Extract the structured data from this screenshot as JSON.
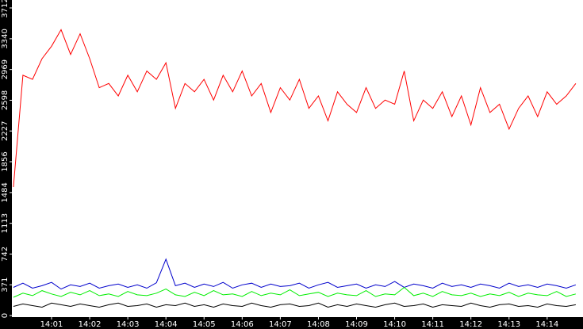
{
  "chart_data": {
    "type": "line",
    "x": [
      0,
      0.25,
      0.5,
      0.75,
      1,
      1.25,
      1.5,
      1.75,
      2,
      2.25,
      2.5,
      2.75,
      3,
      3.25,
      3.5,
      3.75,
      4,
      4.25,
      4.5,
      4.75,
      5,
      5.25,
      5.5,
      5.75,
      6,
      6.25,
      6.5,
      6.75,
      7,
      7.25,
      7.5,
      7.75,
      8,
      8.25,
      8.5,
      8.75,
      9,
      9.25,
      9.5,
      9.75,
      10,
      10.25,
      10.5,
      10.75,
      11,
      11.25,
      11.5,
      11.75,
      12,
      12.25,
      12.5,
      12.75,
      13,
      13.25,
      13.5,
      13.75,
      14,
      14.25,
      14.5,
      14.75
    ],
    "series": [
      {
        "color": "#ff0000",
        "values": [
          1550,
          2900,
          2850,
          3100,
          3250,
          3450,
          3150,
          3400,
          3100,
          2750,
          2800,
          2650,
          2900,
          2700,
          2950,
          2850,
          3050,
          2500,
          2800,
          2700,
          2850,
          2600,
          2900,
          2700,
          2950,
          2650,
          2800,
          2450,
          2750,
          2600,
          2850,
          2500,
          2650,
          2350,
          2700,
          2550,
          2450,
          2750,
          2500,
          2600,
          2550,
          2950,
          2350,
          2600,
          2500,
          2700,
          2400,
          2650,
          2300,
          2750,
          2450,
          2550,
          2250,
          2500,
          2650,
          2400,
          2700,
          2550,
          2650,
          2800
        ]
      },
      {
        "color": "#0000cc",
        "values": [
          340,
          390,
          330,
          360,
          400,
          320,
          370,
          350,
          390,
          330,
          360,
          380,
          340,
          370,
          330,
          395,
          680,
          360,
          390,
          340,
          380,
          350,
          400,
          330,
          370,
          390,
          340,
          380,
          350,
          360,
          390,
          330,
          370,
          400,
          340,
          360,
          380,
          330,
          370,
          350,
          410,
          340,
          380,
          360,
          330,
          390,
          350,
          370,
          340,
          380,
          360,
          330,
          390,
          350,
          370,
          340,
          380,
          360,
          330,
          370
        ]
      },
      {
        "color": "#00ee00",
        "values": [
          220,
          270,
          240,
          300,
          260,
          230,
          280,
          250,
          300,
          240,
          260,
          230,
          290,
          250,
          240,
          270,
          320,
          250,
          230,
          280,
          240,
          300,
          250,
          260,
          230,
          290,
          240,
          270,
          250,
          310,
          240,
          260,
          280,
          230,
          270,
          250,
          240,
          300,
          230,
          260,
          250,
          340,
          240,
          270,
          230,
          290,
          250,
          240,
          270,
          230,
          260,
          240,
          280,
          230,
          270,
          250,
          240,
          290,
          230,
          260
        ]
      },
      {
        "color": "#000000",
        "values": [
          110,
          140,
          120,
          100,
          150,
          130,
          110,
          140,
          120,
          100,
          130,
          150,
          110,
          120,
          140,
          100,
          130,
          120,
          150,
          110,
          130,
          100,
          140,
          120,
          110,
          150,
          120,
          100,
          130,
          140,
          110,
          120,
          150,
          100,
          130,
          110,
          140,
          120,
          100,
          130,
          150,
          110,
          120,
          140,
          100,
          130,
          120,
          110,
          150,
          120,
          100,
          130,
          140,
          110,
          120,
          100,
          140,
          120,
          110,
          130
        ]
      }
    ],
    "xlim": [
      -0.04,
      14.94
    ],
    "xticks": [
      {
        "value": 1,
        "label": "14:01"
      },
      {
        "value": 2,
        "label": "14:02"
      },
      {
        "value": 3,
        "label": "14:03"
      },
      {
        "value": 4,
        "label": "14:04"
      },
      {
        "value": 5,
        "label": "14:05"
      },
      {
        "value": 6,
        "label": "14:06"
      },
      {
        "value": 7,
        "label": "14:07"
      },
      {
        "value": 8,
        "label": "14:08"
      },
      {
        "value": 9,
        "label": "14:09"
      },
      {
        "value": 10,
        "label": "14:10"
      },
      {
        "value": 11,
        "label": "14:11"
      },
      {
        "value": 12,
        "label": "14:12"
      },
      {
        "value": 13,
        "label": "14:13"
      },
      {
        "value": 14,
        "label": "14:14"
      }
    ],
    "ylim": [
      0,
      3712
    ],
    "yticks": [
      0,
      371,
      742,
      1113,
      1484,
      1856,
      2227,
      2598,
      2969,
      3340,
      3712
    ]
  }
}
